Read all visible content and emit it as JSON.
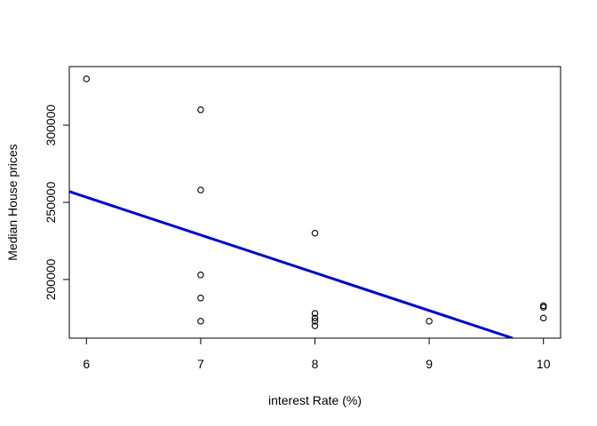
{
  "chart_data": {
    "type": "scatter",
    "title": "",
    "xlabel": "interest Rate (%)",
    "ylabel": "Median House prices",
    "xlim": [
      5.85,
      10.15
    ],
    "ylim": [
      162000,
      338000
    ],
    "x_ticks": [
      6,
      7,
      8,
      9,
      10
    ],
    "x_tick_labels": [
      "6",
      "7",
      "8",
      "9",
      "10"
    ],
    "y_ticks": [
      200000,
      250000,
      300000
    ],
    "y_tick_labels": [
      "200000",
      "250000",
      "300000"
    ],
    "grid": false,
    "legend": "none",
    "series": [
      {
        "type": "scatter",
        "marker": "open-circle",
        "color": "#000000",
        "points": [
          {
            "x": 6,
            "y": 330000
          },
          {
            "x": 7,
            "y": 310000
          },
          {
            "x": 7,
            "y": 258000
          },
          {
            "x": 7,
            "y": 203000
          },
          {
            "x": 7,
            "y": 188000
          },
          {
            "x": 7,
            "y": 173000
          },
          {
            "x": 8,
            "y": 230000
          },
          {
            "x": 8,
            "y": 178000
          },
          {
            "x": 8,
            "y": 175000
          },
          {
            "x": 8,
            "y": 173000
          },
          {
            "x": 8,
            "y": 170000
          },
          {
            "x": 9,
            "y": 173000
          },
          {
            "x": 10,
            "y": 183000
          },
          {
            "x": 10,
            "y": 182000
          },
          {
            "x": 10,
            "y": 175000
          }
        ]
      },
      {
        "type": "line",
        "role": "fitted-regression-line",
        "color": "#0000CD",
        "points": [
          {
            "x": 5.85,
            "y": 257000
          },
          {
            "x": 9.73,
            "y": 162000
          }
        ]
      }
    ]
  }
}
